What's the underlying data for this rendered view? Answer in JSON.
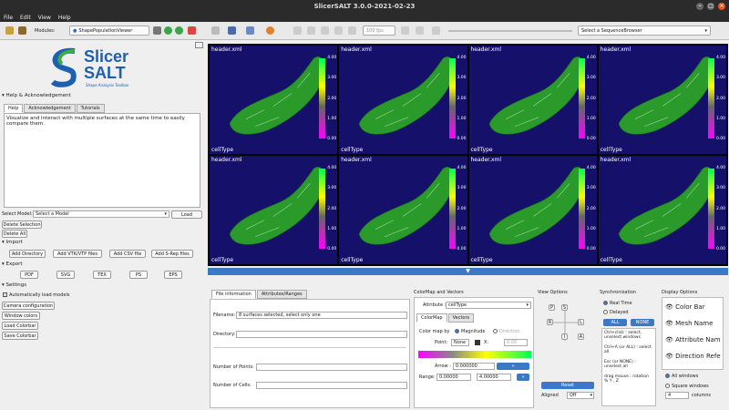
{
  "window": {
    "title": "SlicerSALT 3.0.0-2021-02-23"
  },
  "menu": [
    "File",
    "Edit",
    "View",
    "Help"
  ],
  "toolbar": {
    "modules_label": "Modules:",
    "module": "ShapePopulationViewer",
    "sequence_browser": "Select a SequenceBrowser",
    "speed": "100 fps"
  },
  "logo": {
    "line1": "Slicer",
    "line2": "SALT",
    "tagline": "Shape AnaLysis Toolbox"
  },
  "help": {
    "section": "Help & Acknowledgement",
    "tabs": [
      "Help",
      "Acknowledgement",
      "Tutorials"
    ],
    "text": "Visualize and interact with multiple surfaces at the same time to easily compare them."
  },
  "model": {
    "label": "Select Model:",
    "placeholder": "Select a Model",
    "load": "Load",
    "delete_sel": "Delete Selection",
    "delete_all": "Delete All"
  },
  "import": {
    "section": "Import",
    "buttons": [
      "Add Directory",
      "Add VTK/VTP files",
      "Add CSV file",
      "Add S-Rep files"
    ]
  },
  "export": {
    "section": "Export",
    "buttons": [
      "PDF",
      "SVG",
      "TEX",
      "PS",
      "EPS"
    ]
  },
  "settings": {
    "section": "Settings",
    "auto_models": "Automatically load models",
    "buttons": [
      "Camera configuration",
      "Window colors",
      "Load Colorbar",
      "Save Colorbar"
    ]
  },
  "views": {
    "header": "header.xml",
    "footer": "cellType",
    "ticks": [
      "4.00",
      "3.00",
      "2.00",
      "1.00",
      "0.00"
    ],
    "count": 8
  },
  "expand_arrow": "▼",
  "fileinfo": {
    "tabs": [
      "File information",
      "Attributes/Ranges"
    ],
    "filename_label": "Filename:",
    "filename_value": "8 surfaces selected, select only one",
    "directory_label": "Directory:",
    "points_label": "Number of Points:",
    "cells_label": "Number of Cells:"
  },
  "colormap": {
    "title": "ColorMap and Vectors",
    "attribute_label": "Attribute :",
    "attribute": "cellType",
    "tabs": [
      "ColorMap",
      "Vectors"
    ],
    "colormap_by": "Color map by",
    "magnitude": "Magnitude",
    "direction": "Direction",
    "point_label": "Point:",
    "point_value": "None",
    "x_label": "X:",
    "x_value": "0.00",
    "arrow_label": "Arrow :",
    "arrow_value": "0.000000",
    "range_label": "Range:",
    "range_min": "0.00000",
    "range_max": "4.00000"
  },
  "viewopt": {
    "title": "View Options",
    "axes": [
      "P",
      "S",
      "R",
      "L",
      "I",
      "A"
    ],
    "reset": "Reset",
    "aligned": "Aligned",
    "aligned_value": "Off"
  },
  "sync": {
    "title": "Synchronization",
    "realtime": "Real Time",
    "delayed": "Delayed",
    "all": "ALL",
    "none": "NONE",
    "hint1": "Ctrl+click : select, unselect windows",
    "hint2": "Ctrl+A (or ALL) : select all",
    "hint3": "Esc (or NONE) : unselect all",
    "hint4": "drag mouse : rotation % Y , Z"
  },
  "display": {
    "title": "Display Options",
    "items": [
      "Color Bar",
      "Mesh Name",
      "Attribute Nam",
      "Direction Refe"
    ],
    "all_windows": "All windows",
    "square_windows": "Square windows",
    "columns_value": "4",
    "columns_label": "columns"
  },
  "colors": {
    "accent": "#3a78c8",
    "view_bg": "#15106a",
    "mesh": "#2a9a2a"
  }
}
